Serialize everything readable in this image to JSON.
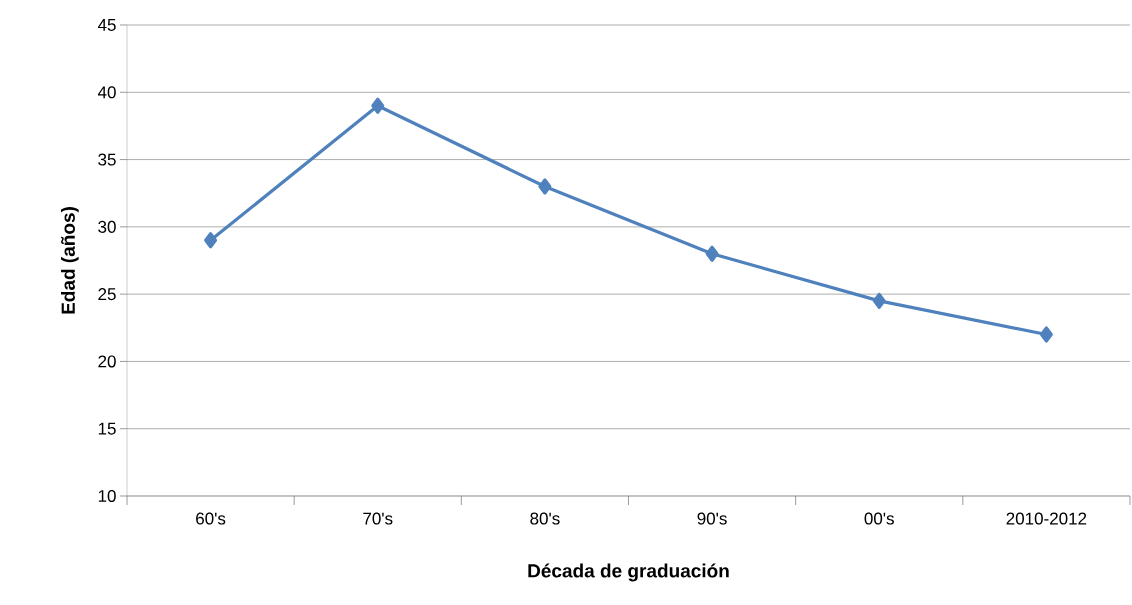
{
  "chart_data": {
    "type": "line",
    "xlabel": "Década de graduación",
    "ylabel": "Edad (años)",
    "categories": [
      "60's",
      "70's",
      "80's",
      "90's",
      "00's",
      "2010-2012"
    ],
    "series": [
      {
        "color": "#4f81bd",
        "values": [
          29,
          39,
          33,
          28,
          24.5,
          22
        ]
      }
    ],
    "ylim": [
      10,
      45
    ],
    "yticks": [
      10,
      15,
      20,
      25,
      30,
      35,
      40,
      45
    ],
    "grid": "y",
    "marker": "diamond",
    "line_style": "solid"
  }
}
